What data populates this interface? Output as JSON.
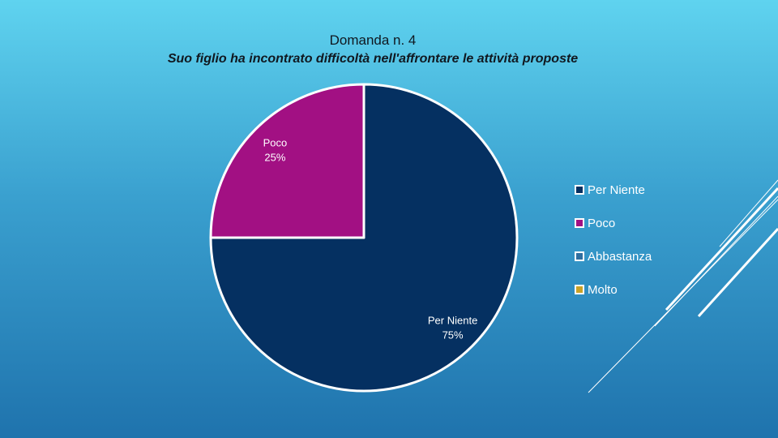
{
  "chart_data": {
    "type": "pie",
    "title": "Domanda n. 4",
    "subtitle": "Suo figlio ha incontrato difficoltà nell'affrontare le attività proposte",
    "categories": [
      "Per Niente",
      "Poco",
      "Abbastanza",
      "Molto"
    ],
    "values": [
      75,
      25,
      0,
      0
    ],
    "value_labels": [
      "75%",
      "25%",
      "",
      ""
    ],
    "colors": [
      "#053061",
      "#a21083",
      "#2f6fa0",
      "#c9a227"
    ],
    "legend_position": "right"
  }
}
